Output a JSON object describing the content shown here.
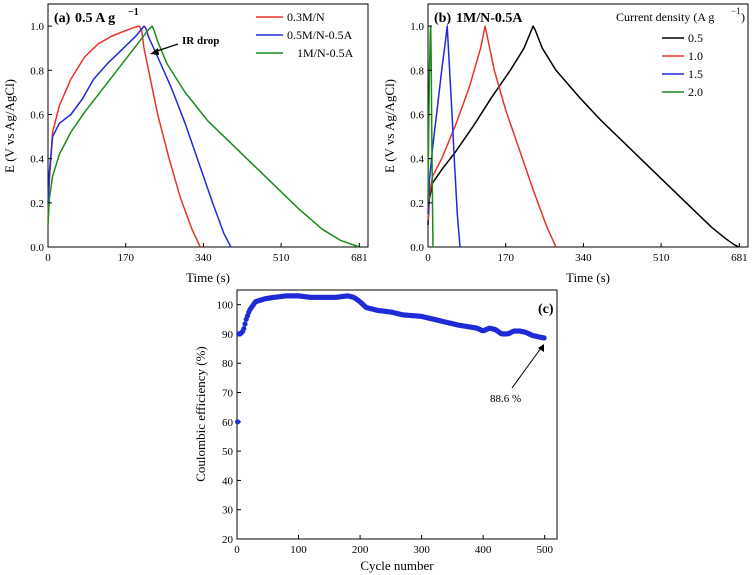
{
  "chart_data": [
    {
      "type": "line",
      "panel_label": "(a)",
      "title": "0.5 A g",
      "title_superscript": "−1",
      "xlabel": "Time (s)",
      "ylabel": "E (V vs Ag/AgCl)",
      "xlim": [
        0,
        700
      ],
      "ylim": [
        0,
        1.1
      ],
      "xticks": [
        0,
        170,
        340,
        510,
        681
      ],
      "yticks": [
        0.0,
        0.2,
        0.4,
        0.6,
        0.8,
        1.0
      ],
      "xtick_labels": [
        "0",
        "170",
        "340",
        "510",
        "681"
      ],
      "ytick_labels": [
        "0.0",
        "0.2",
        "0.4",
        "0.6",
        "0.8",
        "1.0"
      ],
      "annotation": "IR drop",
      "legend": "top-right",
      "series": [
        {
          "name": "0.3M/N",
          "color": "#e8332a",
          "x": [
            0,
            3,
            10,
            25,
            50,
            80,
            110,
            140,
            170,
            190,
            200,
            205,
            210,
            222,
            240,
            265,
            290,
            315,
            333
          ],
          "y": [
            0.12,
            0.3,
            0.52,
            0.64,
            0.76,
            0.86,
            0.92,
            0.955,
            0.98,
            0.995,
            1.0,
            0.98,
            0.9,
            0.78,
            0.6,
            0.4,
            0.22,
            0.08,
            0.0
          ]
        },
        {
          "name": "0.5M/N-0.5A",
          "color": "#1f2bd6",
          "x": [
            0,
            3,
            10,
            25,
            50,
            75,
            100,
            130,
            160,
            190,
            210,
            214,
            220,
            240,
            270,
            300,
            330,
            360,
            385,
            400
          ],
          "y": [
            0.2,
            0.34,
            0.5,
            0.56,
            0.6,
            0.67,
            0.76,
            0.83,
            0.89,
            0.95,
            1.0,
            0.99,
            0.95,
            0.86,
            0.72,
            0.56,
            0.38,
            0.2,
            0.06,
            0.0
          ]
        },
        {
          "name": "1M/N-0.5A",
          "color": "#1a8c1a",
          "x": [
            0,
            3,
            10,
            25,
            50,
            80,
            110,
            140,
            170,
            200,
            220,
            228,
            232,
            240,
            260,
            300,
            350,
            400,
            450,
            500,
            550,
            600,
            640,
            681
          ],
          "y": [
            0.1,
            0.22,
            0.32,
            0.42,
            0.52,
            0.61,
            0.69,
            0.77,
            0.85,
            0.93,
            0.985,
            1.0,
            0.98,
            0.93,
            0.83,
            0.7,
            0.57,
            0.47,
            0.37,
            0.27,
            0.17,
            0.08,
            0.03,
            0.0
          ]
        }
      ]
    },
    {
      "type": "line",
      "panel_label": "(b)",
      "title": "1M/N-0.5A",
      "xlabel": "Time (s)",
      "ylabel": "E (V vs Ag/AgCl)",
      "xlim": [
        0,
        700
      ],
      "ylim": [
        0,
        1.1
      ],
      "xticks": [
        0,
        170,
        340,
        510,
        681
      ],
      "yticks": [
        0.0,
        0.2,
        0.4,
        0.6,
        0.8,
        1.0
      ],
      "xtick_labels": [
        "0",
        "170",
        "340",
        "510",
        "681"
      ],
      "ytick_labels": [
        "0.0",
        "0.2",
        "0.4",
        "0.6",
        "0.8",
        "1.0"
      ],
      "legend_title": "Current density (A g",
      "legend_title_superscript": "−1",
      "legend_title_close": ")",
      "legend": "top-right",
      "series": [
        {
          "name": "0.5",
          "color": "#000000",
          "x": [
            0,
            3,
            10,
            30,
            60,
            100,
            140,
            180,
            210,
            230,
            235,
            250,
            280,
            330,
            380,
            430,
            480,
            530,
            580,
            620,
            650,
            670,
            681
          ],
          "y": [
            0.1,
            0.22,
            0.29,
            0.35,
            0.43,
            0.55,
            0.68,
            0.8,
            0.9,
            1.0,
            0.98,
            0.9,
            0.8,
            0.68,
            0.57,
            0.47,
            0.37,
            0.27,
            0.17,
            0.09,
            0.04,
            0.01,
            0.0
          ]
        },
        {
          "name": "1.0",
          "color": "#e8332a",
          "x": [
            0,
            3,
            10,
            30,
            60,
            90,
            115,
            125,
            130,
            145,
            170,
            200,
            230,
            260,
            280
          ],
          "y": [
            0.12,
            0.24,
            0.32,
            0.4,
            0.55,
            0.72,
            0.9,
            1.0,
            0.95,
            0.8,
            0.62,
            0.44,
            0.26,
            0.09,
            0.0
          ]
        },
        {
          "name": "1.5",
          "color": "#1f2bd6",
          "x": [
            0,
            3,
            10,
            20,
            30,
            38,
            42,
            46,
            52,
            58,
            64,
            70
          ],
          "y": [
            0.15,
            0.3,
            0.45,
            0.62,
            0.8,
            0.93,
            1.0,
            0.85,
            0.62,
            0.38,
            0.15,
            0.0
          ]
        },
        {
          "name": "2.0",
          "color": "#1a8c1a",
          "x": [
            0,
            1,
            3,
            5,
            6,
            7,
            8,
            10,
            11
          ],
          "y": [
            0.2,
            0.45,
            0.78,
            0.97,
            1.0,
            0.85,
            0.55,
            0.15,
            0.0
          ]
        }
      ]
    },
    {
      "type": "scatter",
      "panel_label": "(c)",
      "xlabel": "Cycle number",
      "ylabel": "Coulombic efficiency (%)",
      "xlim": [
        0,
        520
      ],
      "ylim": [
        20,
        105
      ],
      "xticks": [
        0,
        100,
        200,
        300,
        400,
        500
      ],
      "yticks": [
        20,
        30,
        40,
        50,
        60,
        70,
        80,
        90,
        100
      ],
      "xtick_labels": [
        "0",
        "100",
        "200",
        "300",
        "400",
        "500"
      ],
      "ytick_labels": [
        "20",
        "30",
        "40",
        "50",
        "60",
        "70",
        "80",
        "90",
        "100"
      ],
      "annotation": "88.6 %",
      "marker_color": "#1f2bd6",
      "series": [
        {
          "name": "Coulombic efficiency",
          "anchor_x": [
            1,
            2,
            5,
            10,
            15,
            20,
            30,
            45,
            60,
            80,
            100,
            120,
            140,
            160,
            180,
            190,
            200,
            210,
            230,
            250,
            270,
            300,
            330,
            360,
            390,
            400,
            410,
            420,
            430,
            440,
            450,
            460,
            470,
            480,
            490,
            500
          ],
          "anchor_y": [
            60,
            90,
            90,
            91,
            95,
            98,
            101,
            102,
            102.5,
            103,
            103,
            102.5,
            102.5,
            102.5,
            103,
            102.5,
            101,
            99,
            98,
            97.5,
            96.5,
            96,
            94.5,
            93,
            92,
            91,
            92,
            91.5,
            90,
            90,
            91,
            91,
            90.5,
            89.5,
            89,
            88.6
          ]
        }
      ]
    }
  ]
}
